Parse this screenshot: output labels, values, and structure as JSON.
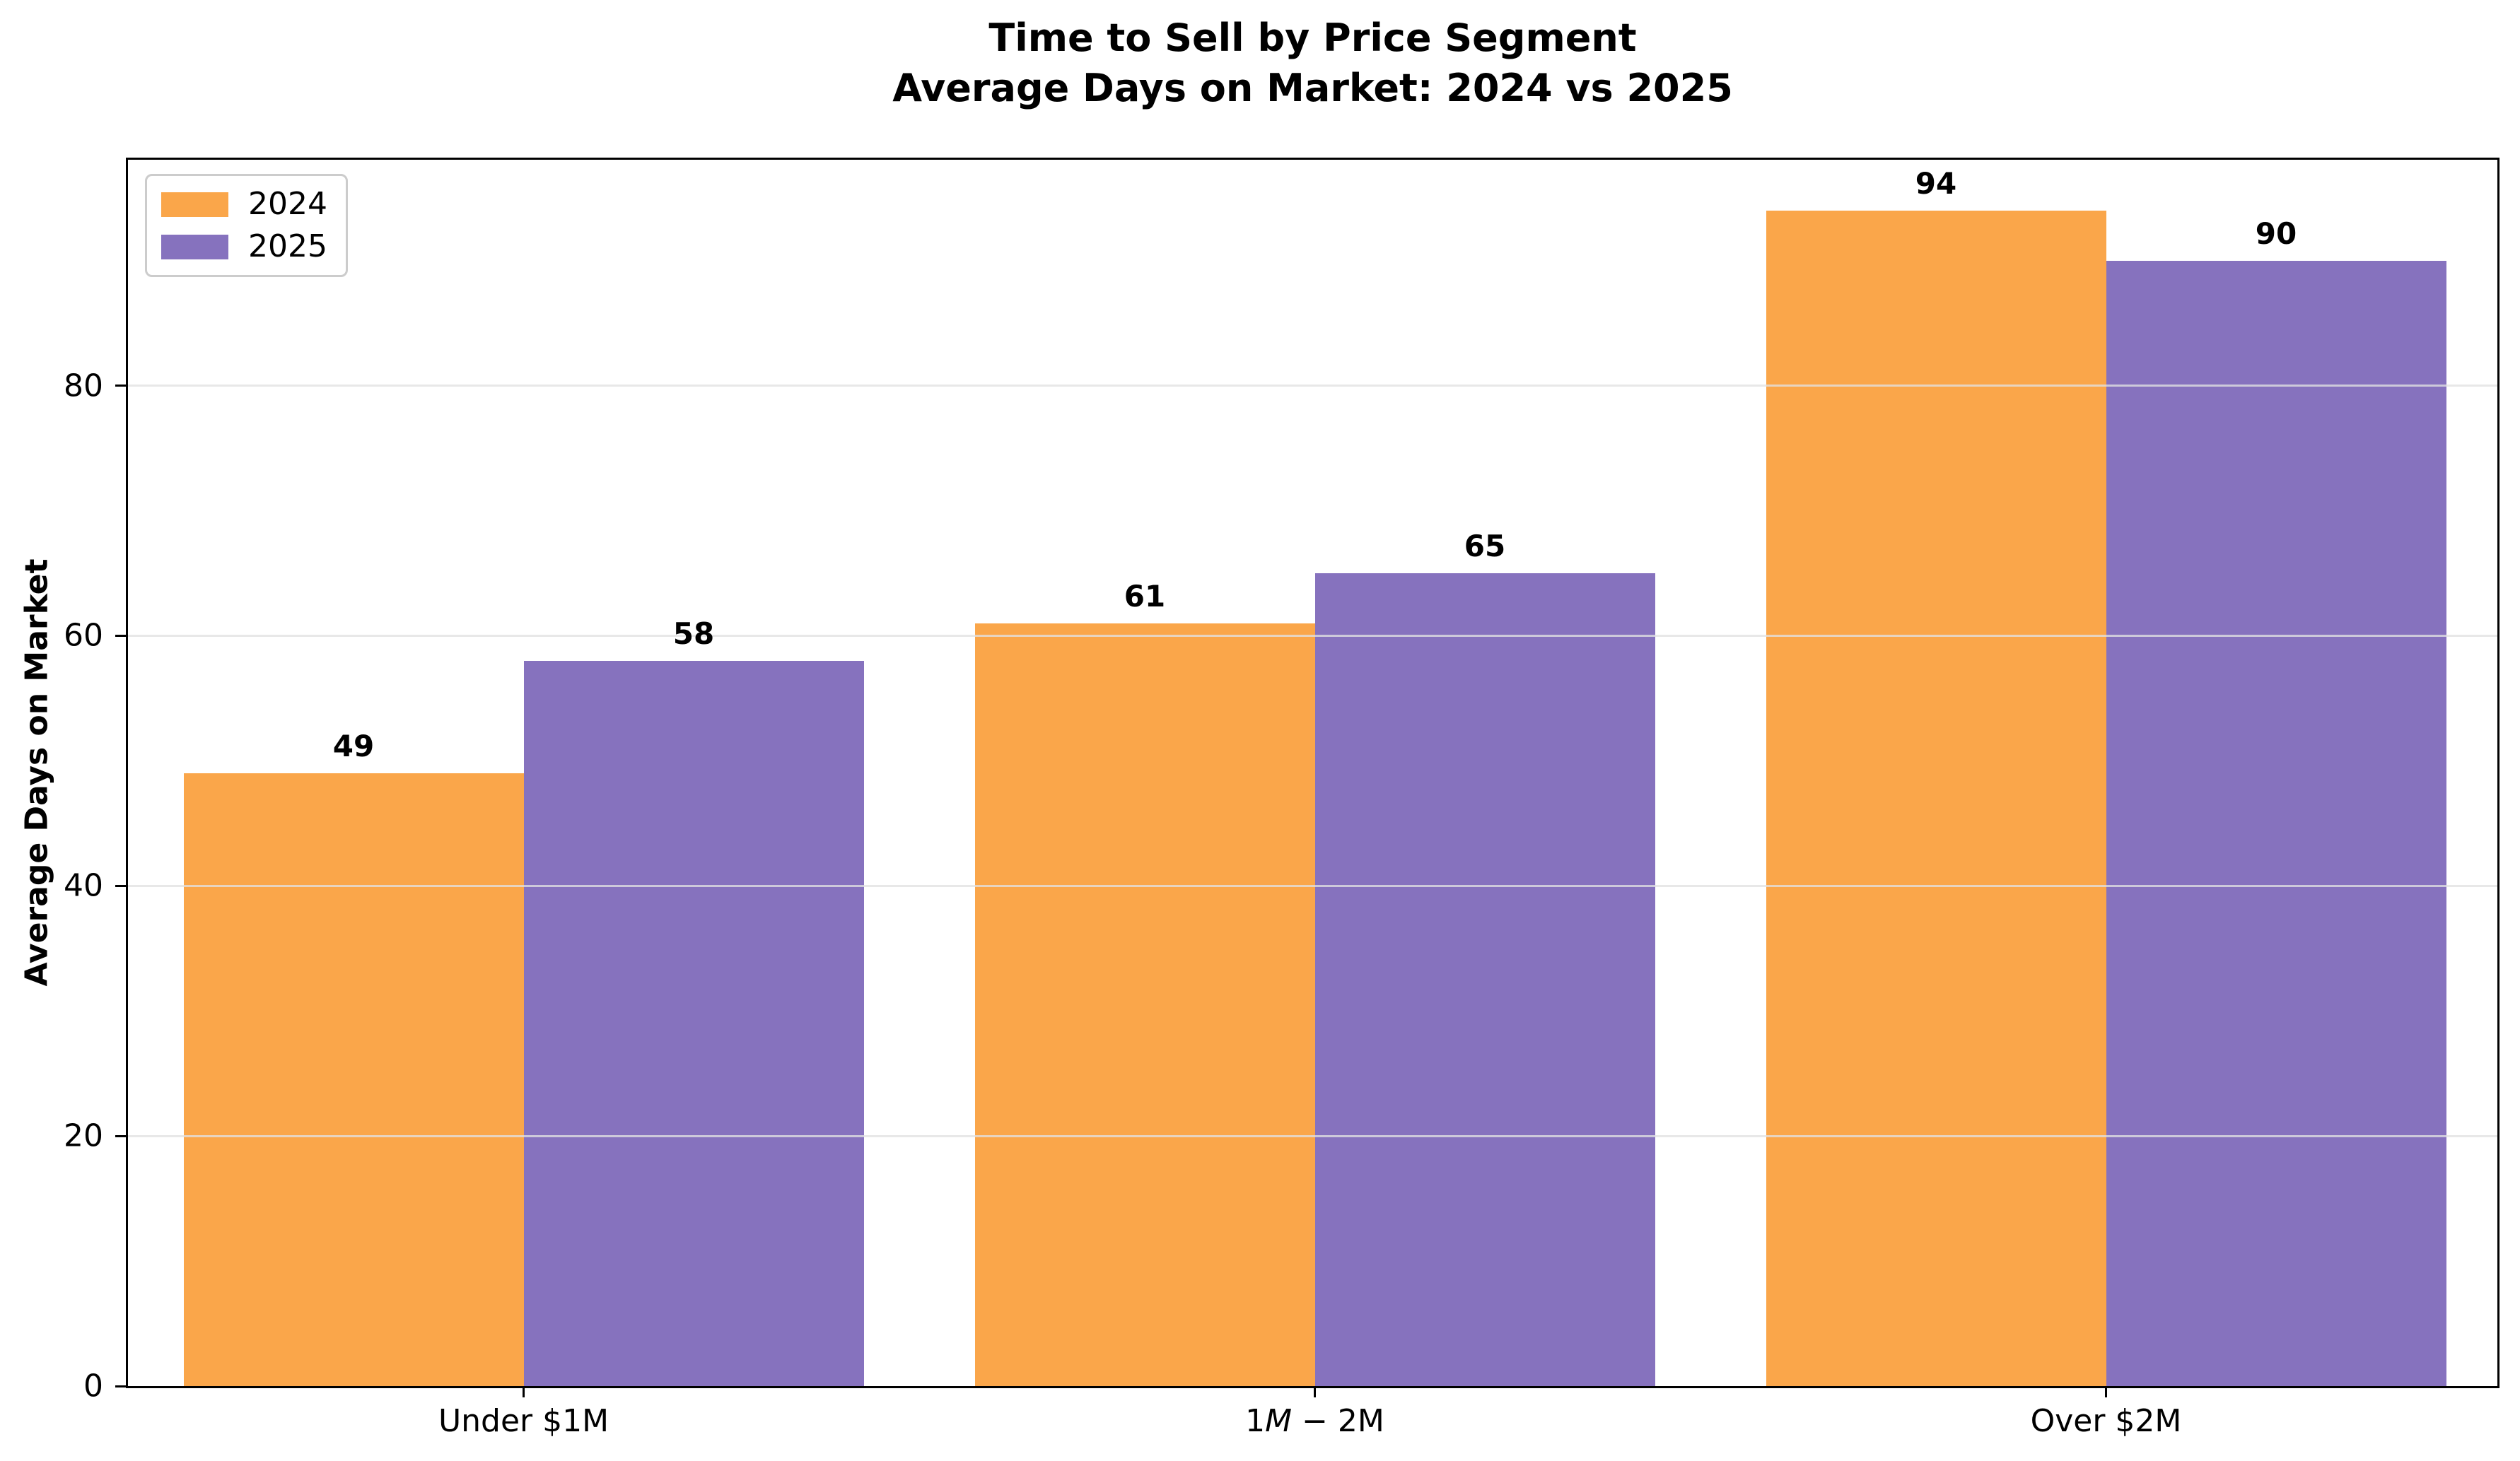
{
  "title": {
    "line1": "Time to Sell by Price Segment",
    "line2": "Average Days on Market: 2024 vs 2025"
  },
  "chart_data": {
    "type": "bar",
    "title": "Time to Sell by Price Segment",
    "subtitle": "Average Days on Market: 2024 vs 2025",
    "xlabel": "",
    "ylabel": "Average Days on Market",
    "categories": [
      {
        "label": "Under $1M",
        "parts": [
          {
            "t": "Under $1M"
          }
        ]
      },
      {
        "label": "1M − 2M",
        "parts": [
          {
            "t": "1"
          },
          {
            "t": "M",
            "i": true
          },
          {
            "t": " − 2M"
          }
        ]
      },
      {
        "label": "Over $2M",
        "parts": [
          {
            "t": "Over $2M"
          }
        ]
      }
    ],
    "series": [
      {
        "name": "2024",
        "color": "#FAA64A",
        "values": [
          49,
          61,
          94
        ]
      },
      {
        "name": "2025",
        "color": "#8672BE",
        "values": [
          58,
          65,
          90
        ]
      }
    ],
    "yticks": [
      0,
      20,
      40,
      60,
      80
    ],
    "ylim": [
      0,
      98.4
    ],
    "grid": "horizontal",
    "grid_color": "#E2E2E2",
    "legend_position": "upper left",
    "value_labels": true
  },
  "legend": {
    "items": [
      {
        "label": "2024",
        "color": "#FAA64A"
      },
      {
        "label": "2025",
        "color": "#8672BE"
      }
    ]
  },
  "colors": {
    "background": "#FFFFFF",
    "spine": "#000000",
    "text": "#000000"
  }
}
